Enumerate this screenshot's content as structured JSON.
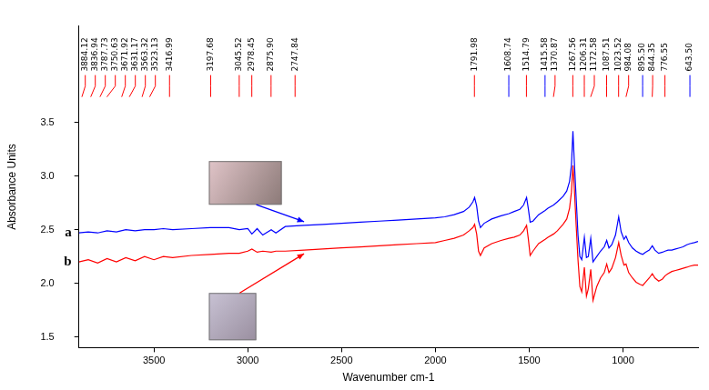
{
  "chart_data": {
    "type": "line",
    "x_label": "Wavenumber cm-1",
    "y_label": "Absorbance Units",
    "x": [
      3900,
      3850,
      3800,
      3750,
      3700,
      3650,
      3600,
      3550,
      3500,
      3450,
      3400,
      3300,
      3200,
      3100,
      3045,
      3000,
      2978,
      2950,
      2920,
      2875,
      2850,
      2800,
      2700,
      2600,
      2500,
      2400,
      2300,
      2200,
      2100,
      2000,
      1950,
      1900,
      1850,
      1820,
      1800,
      1791,
      1780,
      1770,
      1760,
      1740,
      1700,
      1650,
      1608,
      1580,
      1550,
      1530,
      1514,
      1505,
      1495,
      1480,
      1450,
      1415,
      1400,
      1370,
      1350,
      1320,
      1300,
      1285,
      1275,
      1267,
      1260,
      1250,
      1240,
      1230,
      1220,
      1206,
      1195,
      1185,
      1172,
      1160,
      1140,
      1120,
      1100,
      1087,
      1075,
      1060,
      1040,
      1023,
      1010,
      995,
      984,
      970,
      950,
      930,
      910,
      895,
      880,
      860,
      844,
      830,
      810,
      790,
      776,
      760,
      740,
      720,
      700,
      680,
      660,
      643,
      620,
      600
    ],
    "series": [
      {
        "name": "a",
        "color": "#0000ff",
        "values": [
          2.47,
          2.48,
          2.47,
          2.49,
          2.48,
          2.5,
          2.49,
          2.5,
          2.5,
          2.51,
          2.5,
          2.51,
          2.52,
          2.52,
          2.5,
          2.51,
          2.46,
          2.51,
          2.45,
          2.5,
          2.47,
          2.53,
          2.54,
          2.55,
          2.56,
          2.57,
          2.58,
          2.59,
          2.6,
          2.61,
          2.62,
          2.64,
          2.67,
          2.71,
          2.76,
          2.8,
          2.72,
          2.58,
          2.52,
          2.56,
          2.6,
          2.63,
          2.65,
          2.67,
          2.69,
          2.73,
          2.8,
          2.7,
          2.57,
          2.58,
          2.64,
          2.68,
          2.7,
          2.73,
          2.76,
          2.81,
          2.86,
          2.95,
          3.1,
          3.42,
          3.15,
          2.8,
          2.45,
          2.25,
          2.22,
          2.43,
          2.24,
          2.25,
          2.42,
          2.2,
          2.25,
          2.3,
          2.34,
          2.4,
          2.33,
          2.36,
          2.45,
          2.62,
          2.48,
          2.41,
          2.44,
          2.38,
          2.33,
          2.3,
          2.28,
          2.27,
          2.29,
          2.31,
          2.35,
          2.31,
          2.28,
          2.29,
          2.3,
          2.31,
          2.31,
          2.32,
          2.33,
          2.34,
          2.36,
          2.37,
          2.38,
          2.39
        ],
        "peaks": [
          1608.74,
          1415.58,
          {
            "value": 895.5,
            "label": "895.50"
          },
          {
            "value": 643.5,
            "label": "643.50"
          }
        ]
      },
      {
        "name": "b",
        "color": "#ff0000",
        "values": [
          2.2,
          2.22,
          2.19,
          2.23,
          2.2,
          2.24,
          2.21,
          2.25,
          2.22,
          2.25,
          2.24,
          2.26,
          2.27,
          2.28,
          2.28,
          2.3,
          2.32,
          2.29,
          2.3,
          2.29,
          2.3,
          2.3,
          2.31,
          2.32,
          2.33,
          2.34,
          2.35,
          2.36,
          2.37,
          2.38,
          2.4,
          2.42,
          2.45,
          2.49,
          2.52,
          2.55,
          2.46,
          2.3,
          2.26,
          2.33,
          2.37,
          2.4,
          2.42,
          2.43,
          2.45,
          2.49,
          2.54,
          2.42,
          2.26,
          2.3,
          2.37,
          2.41,
          2.43,
          2.46,
          2.49,
          2.55,
          2.6,
          2.7,
          2.85,
          3.1,
          2.9,
          2.55,
          2.22,
          1.97,
          1.92,
          2.15,
          1.88,
          1.95,
          2.13,
          1.84,
          1.97,
          2.05,
          2.1,
          2.18,
          2.1,
          2.14,
          2.24,
          2.38,
          2.26,
          2.17,
          2.18,
          2.1,
          2.05,
          2.01,
          1.99,
          1.98,
          2.01,
          2.05,
          2.09,
          2.05,
          2.02,
          2.04,
          2.07,
          2.09,
          2.11,
          2.12,
          2.13,
          2.14,
          2.15,
          2.16,
          2.17,
          2.17
        ],
        "peaks": [
          3884.12,
          3836.94,
          3787.73,
          3750.63,
          3671.92,
          3631.17,
          3563.32,
          3523.13,
          3416.99,
          3197.68,
          3045.52,
          2978.45,
          {
            "value": 2875.9,
            "label": "2875.90"
          },
          2747.84,
          1791.98,
          1514.79,
          1370.87,
          1267.56,
          1206.31,
          1172.58,
          1087.51,
          1023.52,
          984.08,
          844.35,
          776.55
        ]
      }
    ],
    "xlim": [
      3900,
      600
    ],
    "xticks": [
      3500,
      3000,
      2500,
      2000,
      1500,
      1000
    ],
    "ylim": [
      1.4,
      4.4
    ],
    "yticks": [
      1.5,
      {
        "value": 2,
        "label": "2.0"
      },
      2.5,
      {
        "value": 3,
        "label": "3.0"
      },
      3.5
    ],
    "grid": false
  }
}
